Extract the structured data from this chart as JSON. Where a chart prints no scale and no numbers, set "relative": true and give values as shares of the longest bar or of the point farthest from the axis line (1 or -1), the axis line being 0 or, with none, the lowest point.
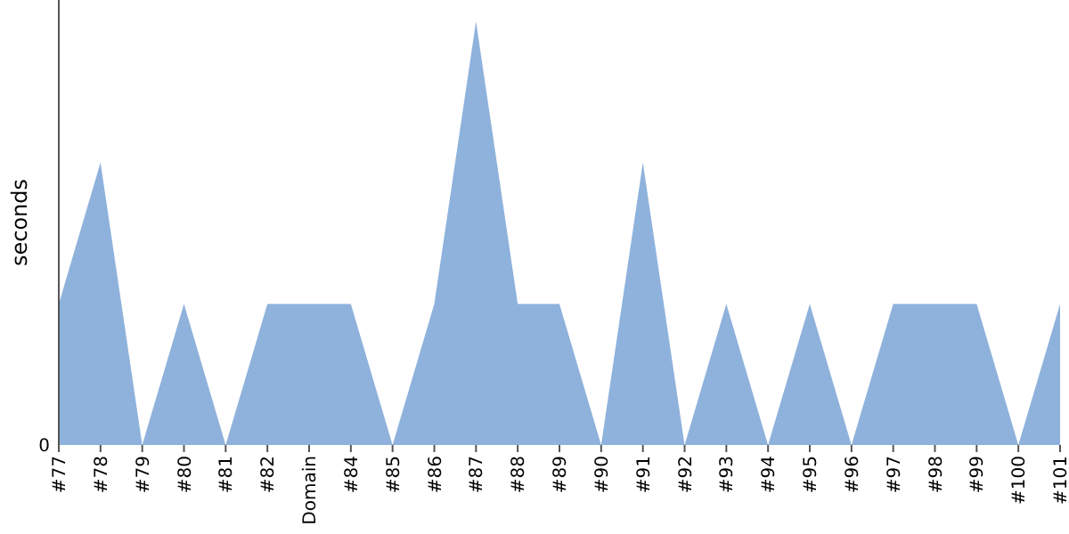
{
  "chart_data": {
    "type": "area",
    "ylabel": "seconds",
    "relative": true,
    "annotations": [
      "0"
    ],
    "color": "#8fb2dc",
    "categories": [
      "#77",
      "#78",
      "#79",
      "#80",
      "#81",
      "#82",
      "Domain",
      "#84",
      "#85",
      "#86",
      "#87",
      "#88",
      "#89",
      "#90",
      "#91",
      "#92",
      "#93",
      "#94",
      "#95",
      "#96",
      "#97",
      "#98",
      "#99",
      "#100",
      "#101"
    ],
    "values": [
      0.333,
      0.667,
      0,
      0.333,
      0,
      0.333,
      0.333,
      0.333,
      0,
      0.333,
      1,
      0.333,
      0.333,
      0,
      0.667,
      0,
      0.333,
      0,
      0.333,
      0,
      0.333,
      0.333,
      0.333,
      0,
      0.333
    ]
  }
}
